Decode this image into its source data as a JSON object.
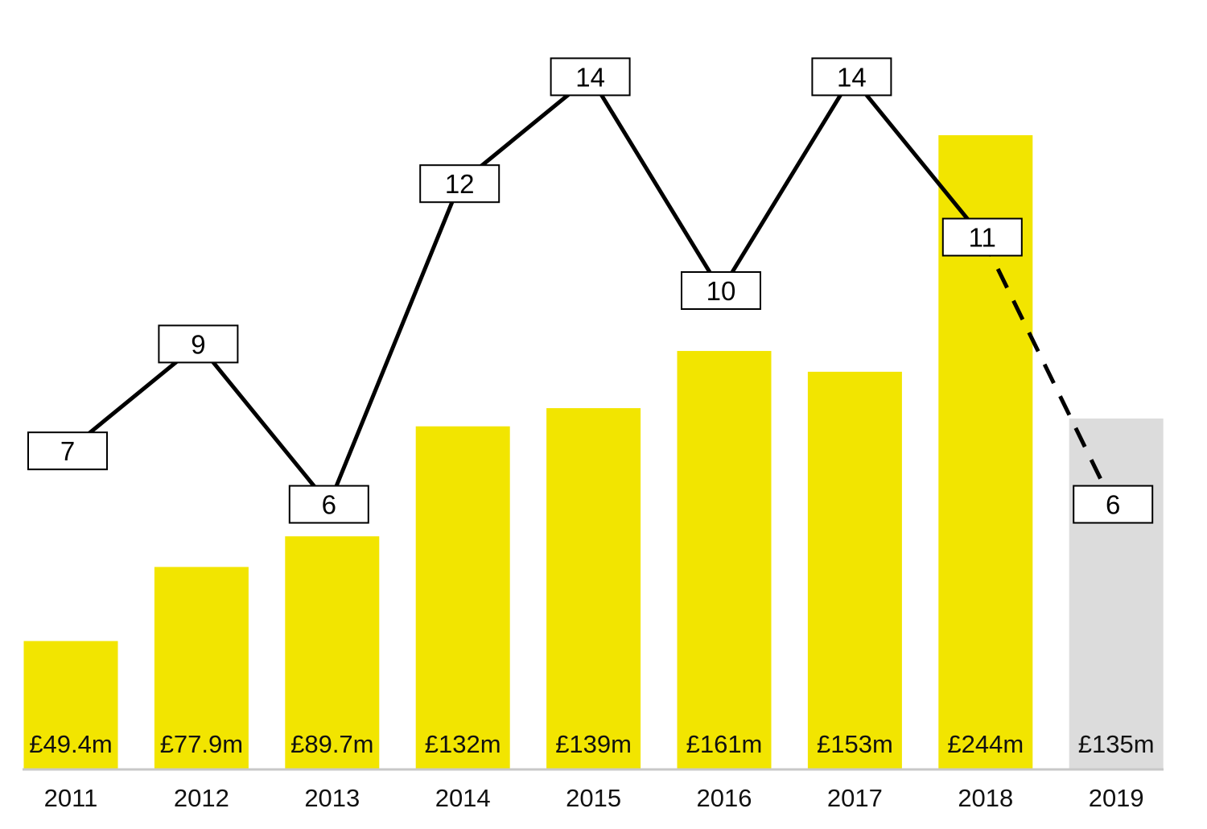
{
  "chart_data": {
    "type": "bar",
    "categories": [
      "2011",
      "2012",
      "2013",
      "2014",
      "2015",
      "2016",
      "2017",
      "2018",
      "2019"
    ],
    "series": [
      {
        "type": "bar",
        "values": [
          49.4,
          77.9,
          89.7,
          132,
          139,
          161,
          153,
          244,
          135
        ],
        "value_labels": [
          "£49.4m",
          "£77.9m",
          "£89.7m",
          "£132m",
          "£139m",
          "£161m",
          "£153m",
          "£244m",
          "£135m"
        ]
      },
      {
        "type": "line",
        "values": [
          7,
          9,
          6,
          12,
          14,
          10,
          14,
          11,
          6
        ],
        "value_labels": [
          "7",
          "9",
          "6",
          "12",
          "14",
          "10",
          "14",
          "11",
          "6"
        ],
        "dashed_from_index": 7
      }
    ],
    "bar_colors": [
      "#f2e500",
      "#f2e500",
      "#f2e500",
      "#f2e500",
      "#f2e500",
      "#f2e500",
      "#f2e500",
      "#f2e500",
      "#dcdcdc"
    ],
    "line_color": "#000000",
    "baseline_color": "#c8c8c8",
    "title": "",
    "xlabel": "",
    "ylabel": "",
    "legend": "none",
    "grid": false
  }
}
